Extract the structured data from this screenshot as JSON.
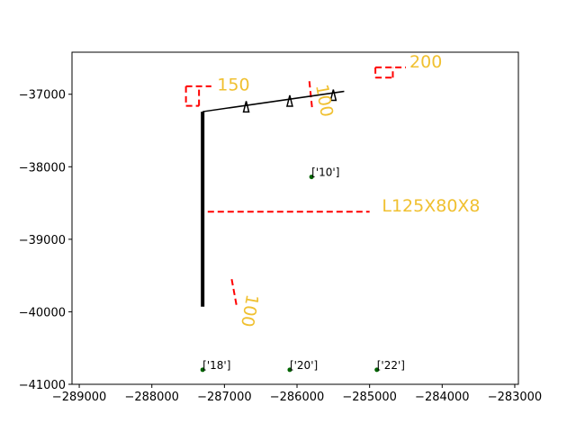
{
  "chart_data": {
    "type": "scatter",
    "xlim": [
      -289100,
      -282950
    ],
    "ylim": [
      -41000,
      -36420
    ],
    "x_ticks": [
      -289000,
      -288000,
      -287000,
      -286000,
      -285000,
      -284000,
      -283000
    ],
    "x_tick_labels": [
      "−289000",
      "−288000",
      "−287000",
      "−286000",
      "−285000",
      "−284000",
      "−283000"
    ],
    "y_ticks": [
      -37000,
      -38000,
      -39000,
      -40000,
      -41000
    ],
    "y_tick_labels": [
      "−37000",
      "−38000",
      "−39000",
      "−40000",
      "−41000"
    ],
    "grid": false,
    "colors": {
      "member": "#000000",
      "dimension": "#ff0000",
      "annotation": "#f0c030",
      "node": "#006400"
    },
    "members": [
      {
        "x": [
          -287300,
          -287300
        ],
        "y": [
          -37240,
          -39930
        ],
        "weight": "heavy"
      },
      {
        "x": [
          -287300,
          -285350
        ],
        "y": [
          -37240,
          -36960
        ],
        "weight": "light"
      }
    ],
    "supports": [
      {
        "x": -286700,
        "y": -37170
      },
      {
        "x": -286100,
        "y": -37090
      },
      {
        "x": -285500,
        "y": -37010
      }
    ],
    "nodes": [
      {
        "label": "['10']",
        "x": -285800,
        "y": -38140
      },
      {
        "label": "['18']",
        "x": -287300,
        "y": -40800
      },
      {
        "label": "['20']",
        "x": -286100,
        "y": -40800
      },
      {
        "label": "['22']",
        "x": -284900,
        "y": -40800
      }
    ],
    "dimension_lines": [
      {
        "x": [
          -287230,
          -285000
        ],
        "y": [
          -38620,
          -38620
        ]
      },
      {
        "x": [
          -285830,
          -285790
        ],
        "y": [
          -36820,
          -37210
        ]
      },
      {
        "x": [
          -286900,
          -286830
        ],
        "y": [
          -39550,
          -39930
        ]
      },
      {
        "x": [
          -287530,
          -287530
        ],
        "y": [
          -36890,
          -37160
        ]
      },
      {
        "x": [
          -287530,
          -287350
        ],
        "y": [
          -37160,
          -37160
        ]
      },
      {
        "x": [
          -287350,
          -287350
        ],
        "y": [
          -37160,
          -36890
        ]
      },
      {
        "x": [
          -287530,
          -287180
        ],
        "y": [
          -36890,
          -36890
        ]
      },
      {
        "x": [
          -284920,
          -284920
        ],
        "y": [
          -36630,
          -36770
        ]
      },
      {
        "x": [
          -284920,
          -284680
        ],
        "y": [
          -36770,
          -36770
        ]
      },
      {
        "x": [
          -284680,
          -284680
        ],
        "y": [
          -36770,
          -36630
        ]
      },
      {
        "x": [
          -284920,
          -284500
        ],
        "y": [
          -36630,
          -36630
        ]
      }
    ],
    "annotations": [
      {
        "text": "150",
        "x": -287100,
        "y": -36950,
        "rotation": 0
      },
      {
        "text": "200",
        "x": -284450,
        "y": -36630,
        "rotation": 0
      },
      {
        "text": "100",
        "x": -285740,
        "y": -36880,
        "rotation": 80
      },
      {
        "text": "100",
        "x": -286690,
        "y": -39750,
        "rotation": 100
      },
      {
        "text": "L125X80X8",
        "x": -284830,
        "y": -38620,
        "rotation": 0
      }
    ]
  }
}
